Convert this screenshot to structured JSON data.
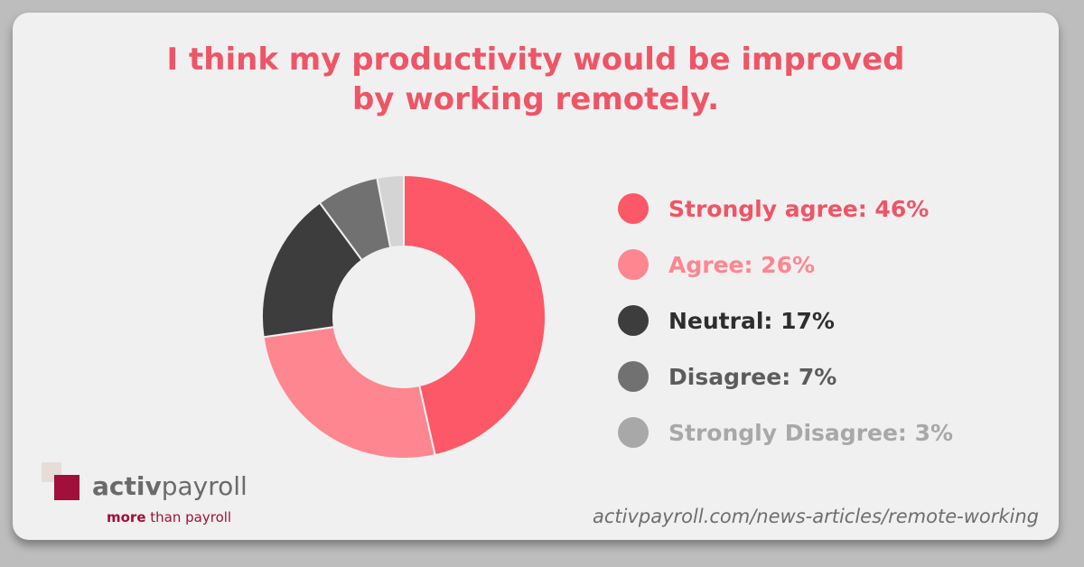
{
  "chart_data": {
    "type": "pie",
    "subtype": "donut",
    "title_lines": [
      "I think my productivity would be improved",
      "by working remotely."
    ],
    "categories": [
      "Strongly agree",
      "Agree",
      "Neutral",
      "Disagree",
      "Strongly Disagree"
    ],
    "values": [
      46,
      26,
      17,
      7,
      3
    ],
    "unit": "%",
    "colors": [
      "#fd5868",
      "#fd8691",
      "#3d3d3d",
      "#717171",
      "#d4d4d4"
    ],
    "legend": {
      "placement": "right",
      "labels": [
        "Strongly agree: 46%",
        "Agree: 26%",
        "Neutral: 17%",
        "Disagree: 7%",
        "Strongly Disagree: 3%"
      ],
      "label_colors": [
        "#ee5566",
        "#fd8691",
        "#2e2e2e",
        "#5c5c5c",
        "#a8a8a8"
      ],
      "dot_colors": [
        "#fd5868",
        "#fd8691",
        "#3d3d3d",
        "#717171",
        "#a8a8a8"
      ]
    }
  },
  "branding": {
    "logo_word_bold": "activ",
    "logo_word_light": "payroll",
    "tagline_bold": "more",
    "tagline_rest": " than payroll",
    "logo_color": "#a0103a",
    "url": "activpayroll.com/news-articles/remote-working"
  }
}
